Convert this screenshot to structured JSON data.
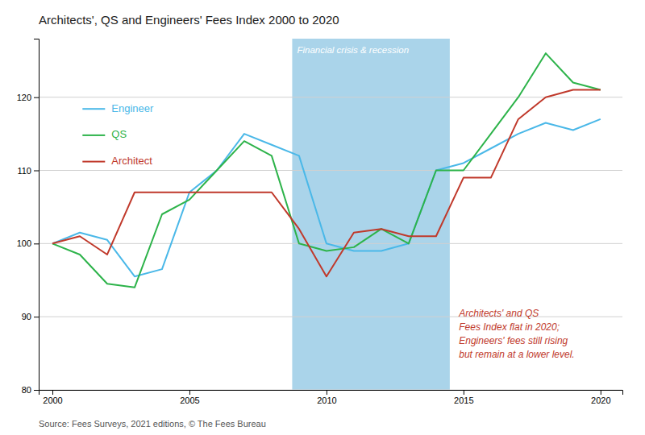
{
  "chart_data": {
    "type": "line",
    "title": "Architects', QS and Engineers' Fees Index 2000 to 2020",
    "source": "Source: Fees Surveys, 2021 editions, © The Fees Bureau",
    "annotations": [
      {
        "text": "Architects' and QS\nFees Index flat in 2020;\nEngineers' fees still rising\nbut remain at a lower level.",
        "color": "#c0392b"
      }
    ],
    "spans": [
      {
        "x0": 2008.75,
        "x1": 2014.5,
        "label": "Financial crisis & recession",
        "color": "#aad4ea"
      }
    ],
    "x": [
      2000,
      2001,
      2002,
      2003,
      2004,
      2005,
      2006,
      2007,
      2008,
      2009,
      2010,
      2011,
      2012,
      2013,
      2014,
      2015,
      2016,
      2017,
      2018,
      2019,
      2020
    ],
    "series": [
      {
        "name": "Engineer",
        "color": "#4ab8e8",
        "values": [
          100,
          101.5,
          100.5,
          95.5,
          96.5,
          107,
          110,
          115,
          113.5,
          112,
          100,
          99,
          99,
          100,
          110,
          111,
          113,
          115,
          116.5,
          115.5,
          117
        ]
      },
      {
        "name": "QS",
        "color": "#2db34a",
        "values": [
          100,
          98.5,
          94.5,
          94,
          104,
          106,
          110,
          114,
          112,
          100,
          99,
          99.5,
          102,
          100,
          110,
          110,
          115,
          120,
          126,
          122,
          121
        ]
      },
      {
        "name": "Architect",
        "color": "#c0392b",
        "values": [
          100,
          101,
          98.5,
          107,
          107,
          107,
          107,
          107,
          107,
          102,
          95.5,
          101.5,
          102,
          101,
          101,
          109,
          109,
          117,
          120,
          121,
          121
        ]
      }
    ],
    "xlim": [
      1999.5,
      2020.8
    ],
    "xticks": [
      2000,
      2005,
      2010,
      2015,
      2020
    ],
    "ylim": [
      80,
      128
    ],
    "yticks": [
      80,
      90,
      100,
      110,
      120
    ],
    "grid": true,
    "legend": "upper left"
  }
}
